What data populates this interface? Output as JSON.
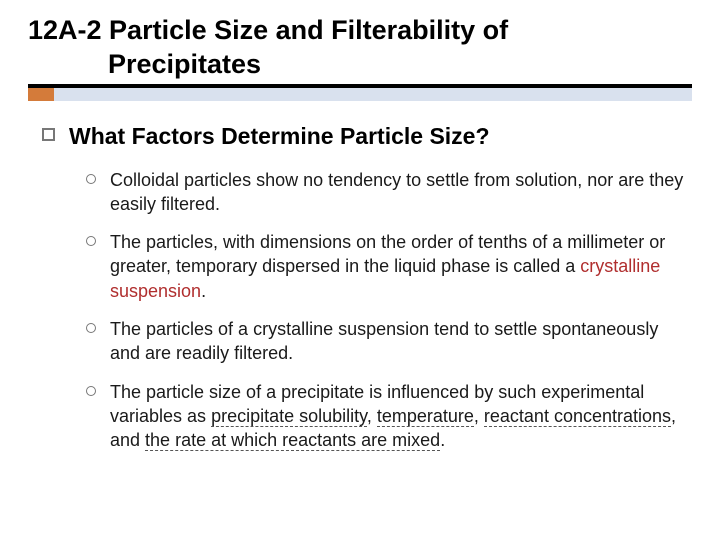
{
  "colors": {
    "accent_orange": "#d47b3a",
    "accent_light": "#d9e1ee",
    "term_red": "#b02e2e",
    "text": "#1a1a1a",
    "underline_dash": "#555555"
  },
  "title": {
    "line1": "12A-2 Particle Size and Filterability of",
    "line2": "Precipitates",
    "fontsize": 27
  },
  "section": {
    "heading": "What Factors Determine Particle Size?",
    "heading_fontsize": 23,
    "items": [
      {
        "segments": [
          {
            "text": "Colloidal particles show no tendency to settle from solution, nor are they easily filtered."
          }
        ]
      },
      {
        "segments": [
          {
            "text": "The particles, with dimensions on the order of tenths of a millimeter or greater, temporary dispersed in the liquid phase is called a "
          },
          {
            "text": "crystalline suspension",
            "red": true
          },
          {
            "text": "."
          }
        ]
      },
      {
        "segments": [
          {
            "text": "The particles of a crystalline suspension tend to settle spontaneously and are readily filtered."
          }
        ]
      },
      {
        "segments": [
          {
            "text": "The particle size of a precipitate is influenced by such experimental variables as "
          },
          {
            "text": "precipitate solubility",
            "underline": true
          },
          {
            "text": ", "
          },
          {
            "text": "temperature",
            "underline": true
          },
          {
            "text": ", "
          },
          {
            "text": "reactant concentrations",
            "underline": true
          },
          {
            "text": ", and "
          },
          {
            "text": "the rate at which reactants are mixed",
            "underline": true
          },
          {
            "text": "."
          }
        ]
      }
    ],
    "item_fontsize": 18
  }
}
